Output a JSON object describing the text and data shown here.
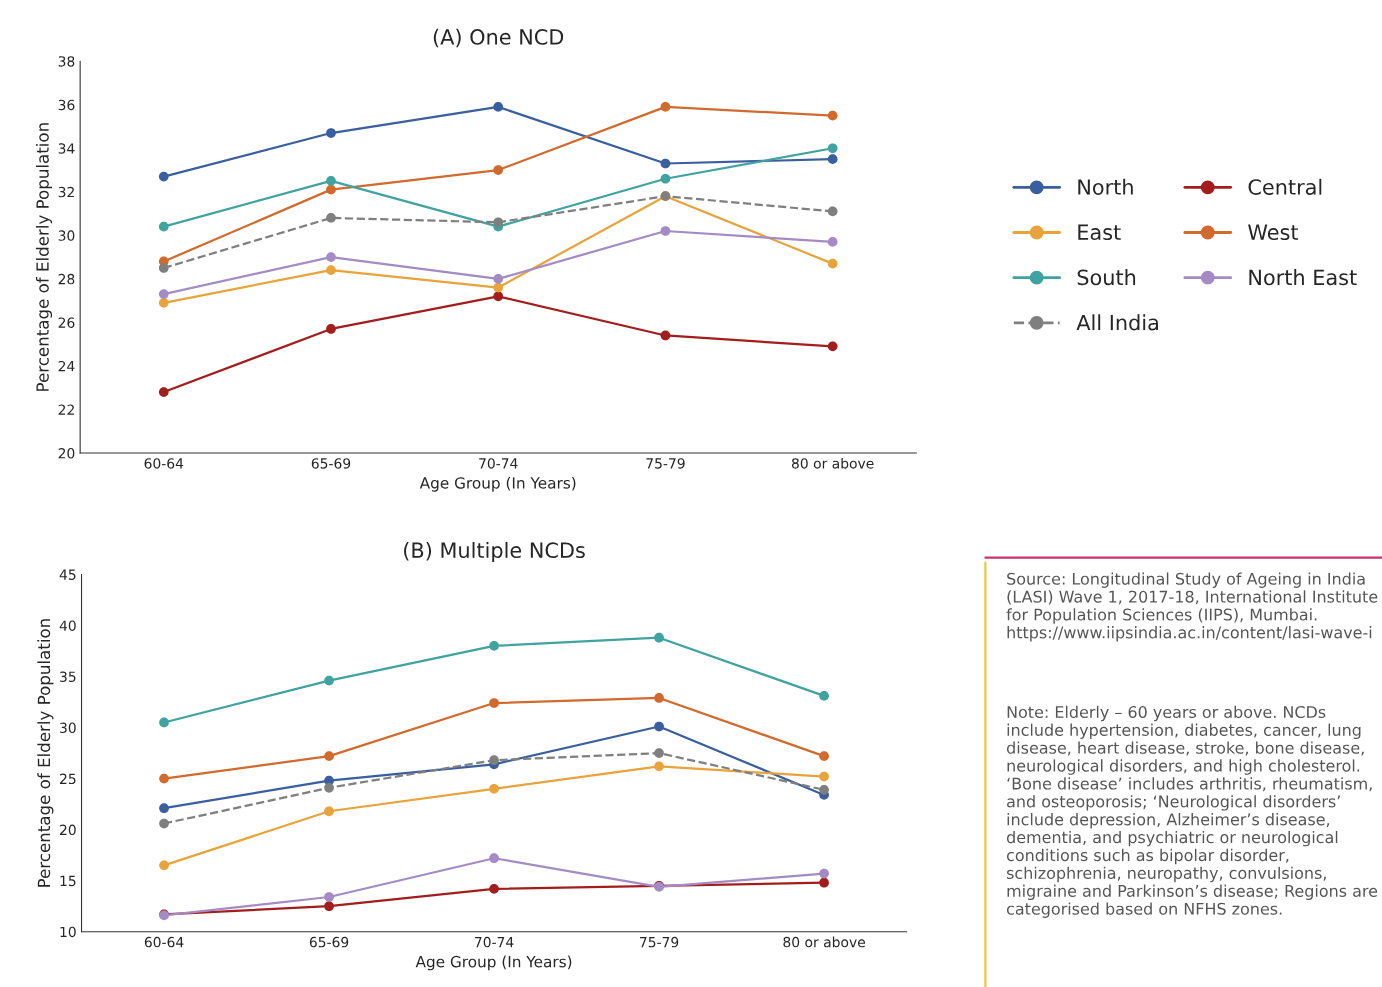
{
  "chart_data": [
    {
      "type": "line",
      "title": "(A) One NCD",
      "xlabel": "Age Group (In Years)",
      "ylabel": "Percentage of Elderly Population",
      "categories": [
        "60-64",
        "65-69",
        "70-74",
        "75-79",
        "80 or above"
      ],
      "ylim": [
        20,
        38
      ],
      "yticks": [
        20,
        22,
        24,
        26,
        28,
        30,
        32,
        34,
        36,
        38
      ],
      "marker": "circle",
      "grid": false,
      "legend": "right",
      "series": [
        {
          "name": "North",
          "color": "#3a5fa0",
          "values": [
            32.7,
            34.7,
            35.9,
            33.3,
            33.5
          ]
        },
        {
          "name": "Central",
          "color": "#a31d1d",
          "values": [
            22.8,
            25.7,
            27.2,
            25.4,
            24.9
          ]
        },
        {
          "name": "East",
          "color": "#e8a33a",
          "values": [
            26.9,
            28.4,
            27.6,
            31.8,
            28.7
          ]
        },
        {
          "name": "West",
          "color": "#d2692d",
          "values": [
            28.8,
            32.1,
            33.0,
            35.9,
            35.5
          ]
        },
        {
          "name": "South",
          "color": "#3fa3a0",
          "values": [
            30.4,
            32.5,
            30.4,
            32.6,
            34.0
          ]
        },
        {
          "name": "North East",
          "color": "#a58bc5",
          "values": [
            27.3,
            29.0,
            28.0,
            30.2,
            29.7
          ]
        },
        {
          "name": "All India",
          "color": "#7f7f7f",
          "line_style": "dashed",
          "values": [
            28.5,
            30.8,
            30.6,
            31.8,
            31.1
          ]
        }
      ]
    },
    {
      "type": "line",
      "title": "(B) Multiple NCDs",
      "xlabel": "Age Group (In Years)",
      "ylabel": "Percentage of Elderly Population",
      "categories": [
        "60-64",
        "65-69",
        "70-74",
        "75-79",
        "80 or above"
      ],
      "ylim": [
        10,
        45
      ],
      "yticks": [
        10,
        15,
        20,
        25,
        30,
        35,
        40,
        45
      ],
      "marker": "circle",
      "grid": false,
      "series": [
        {
          "color": "#3a5fa0",
          "values": [
            22.1,
            24.8,
            26.4,
            30.1,
            23.4
          ]
        },
        {
          "color": "#a31d1d",
          "values": [
            11.7,
            12.5,
            14.2,
            14.5,
            14.8
          ]
        },
        {
          "color": "#e8a33a",
          "values": [
            16.5,
            21.8,
            24.0,
            26.2,
            25.2
          ]
        },
        {
          "color": "#d2692d",
          "values": [
            25.0,
            27.2,
            32.4,
            32.9,
            27.2
          ]
        },
        {
          "color": "#3fa3a0",
          "values": [
            30.5,
            34.6,
            38.0,
            38.8,
            33.1
          ]
        },
        {
          "color": "#a58bc5",
          "values": [
            11.6,
            13.4,
            17.2,
            14.4,
            15.7
          ]
        },
        {
          "color": "#7f7f7f",
          "line_style": "dashed",
          "values": [
            20.6,
            24.1,
            26.8,
            27.5,
            23.9
          ]
        }
      ],
      "annotations": [
        "Source: Longitudinal Study of Ageing in India (LASI) Wave 1, 2017-18, International Institute for Population Sciences (IIPS), Mumbai. https://www.iipsindia.ac.in/content/lasi-wave-i",
        "Note: Elderly – 60 years or above. NCDs include hypertension, diabetes, cancer, lung disease, heart disease, stroke, bone disease, neurological disorders, and high cholesterol. ‘Bone disease’ includes arthritis, rheumatism, and osteoporosis; ‘Neurological disorders’ include depression, Alzheimer’s disease, dementia, and psychiatric or neurological conditions such as bipolar disorder, schizophrenia, neuropathy, convulsions, migraine and Parkinson’s disease; Regions are categorised based on NFHS zones."
      ]
    }
  ]
}
